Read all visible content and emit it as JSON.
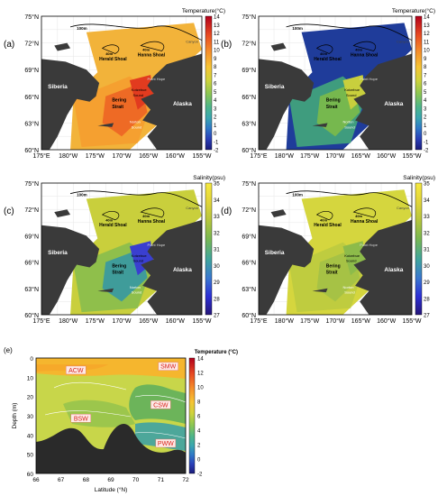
{
  "panels": [
    {
      "id": "a",
      "label": "(a)",
      "cbar_title": "Temperature(°C)",
      "ticks": [
        "14",
        "13",
        "12",
        "11",
        "10",
        "9",
        "8",
        "7",
        "6",
        "5",
        "4",
        "3",
        "2",
        "1",
        "0",
        "-1",
        "-2"
      ]
    },
    {
      "id": "b",
      "label": "(b)",
      "cbar_title": "Temperature(°C)",
      "ticks": [
        "14",
        "13",
        "12",
        "11",
        "10",
        "9",
        "8",
        "7",
        "6",
        "5",
        "4",
        "3",
        "2",
        "1",
        "0",
        "-1",
        "-2"
      ]
    },
    {
      "id": "c",
      "label": "(c)",
      "cbar_title": "Salinity(psu)",
      "ticks": [
        "35",
        "34",
        "33",
        "32",
        "31",
        "30",
        "29",
        "28",
        "27"
      ]
    },
    {
      "id": "d",
      "label": "(d)",
      "cbar_title": "Salinity(psu)",
      "ticks": [
        "35",
        "34",
        "33",
        "32",
        "31",
        "30",
        "29",
        "28",
        "27"
      ]
    }
  ],
  "map_axes": {
    "lat_ticks": [
      "75°N",
      "72°N",
      "69°N",
      "66°N",
      "63°N",
      "60°N"
    ],
    "lon_ticks": [
      "175°E",
      "180°W",
      "175°W",
      "170°W",
      "165°W",
      "160°W",
      "155°W"
    ]
  },
  "map_labels": {
    "siberia": "Siberia",
    "alaska": "Alaska",
    "contour": "100m",
    "herald": "Herald Shoal",
    "hanna": "Hanna Shoal",
    "bering": "Bering",
    "strait": "Strait",
    "point_hope": "Point Hope",
    "kotzebue": "Kotzebue",
    "sound": "Sound",
    "norton": "Norton",
    "canyon": "Canyon"
  },
  "section": {
    "label": "(e)",
    "cbar_title": "Temperature (°C)",
    "cbar_ticks": [
      "14",
      "12",
      "10",
      "8",
      "6",
      "4",
      "2",
      "0",
      "-2"
    ],
    "ylabel": "Depth (m)",
    "xlabel": "Latitude (°N)",
    "y_ticks": [
      "0",
      "10",
      "20",
      "30",
      "40",
      "50",
      "60"
    ],
    "x_ticks": [
      "66",
      "67",
      "68",
      "69",
      "70",
      "71",
      "72"
    ],
    "water_masses": [
      "ACW",
      "SMW",
      "CSW",
      "BSW",
      "PWW"
    ]
  },
  "chart_data": [
    {
      "type": "heatmap",
      "panel": "a",
      "variable": "Temperature",
      "unit": "°C",
      "colorbar_range": [
        -2,
        14
      ],
      "xlim": [
        "175°E",
        "155°W"
      ],
      "ylim": [
        "60°N",
        "75°N"
      ]
    },
    {
      "type": "heatmap",
      "panel": "b",
      "variable": "Temperature",
      "unit": "°C",
      "colorbar_range": [
        -2,
        14
      ],
      "xlim": [
        "175°E",
        "155°W"
      ],
      "ylim": [
        "60°N",
        "75°N"
      ]
    },
    {
      "type": "heatmap",
      "panel": "c",
      "variable": "Salinity",
      "unit": "psu",
      "colorbar_range": [
        27,
        35
      ],
      "xlim": [
        "175°E",
        "155°W"
      ],
      "ylim": [
        "60°N",
        "75°N"
      ]
    },
    {
      "type": "heatmap",
      "panel": "d",
      "variable": "Salinity",
      "unit": "psu",
      "colorbar_range": [
        27,
        35
      ],
      "xlim": [
        "175°E",
        "155°W"
      ],
      "ylim": [
        "60°N",
        "75°N"
      ]
    },
    {
      "type": "heatmap",
      "panel": "e",
      "variable": "Temperature",
      "unit": "°C",
      "xlabel": "Latitude (°N)",
      "ylabel": "Depth (m)",
      "xlim": [
        66,
        72
      ],
      "ylim": [
        60,
        0
      ],
      "colorbar_range": [
        -2,
        14
      ],
      "annotations": [
        {
          "text": "ACW",
          "x": 67.6,
          "y": 7
        },
        {
          "text": "SMW",
          "x": 71.3,
          "y": 5
        },
        {
          "text": "CSW",
          "x": 71.0,
          "y": 25
        },
        {
          "text": "BSW",
          "x": 67.8,
          "y": 32
        },
        {
          "text": "PWW",
          "x": 71.2,
          "y": 45
        }
      ]
    }
  ]
}
